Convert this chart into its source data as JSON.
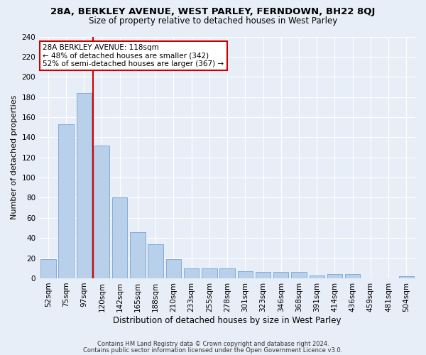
{
  "title1": "28A, BERKLEY AVENUE, WEST PARLEY, FERNDOWN, BH22 8QJ",
  "title2": "Size of property relative to detached houses in West Parley",
  "xlabel": "Distribution of detached houses by size in West Parley",
  "ylabel": "Number of detached properties",
  "footer1": "Contains HM Land Registry data © Crown copyright and database right 2024.",
  "footer2": "Contains public sector information licensed under the Open Government Licence v3.0.",
  "categories": [
    "52sqm",
    "75sqm",
    "97sqm",
    "120sqm",
    "142sqm",
    "165sqm",
    "188sqm",
    "210sqm",
    "233sqm",
    "255sqm",
    "278sqm",
    "301sqm",
    "323sqm",
    "346sqm",
    "368sqm",
    "391sqm",
    "414sqm",
    "436sqm",
    "459sqm",
    "481sqm",
    "504sqm"
  ],
  "values": [
    19,
    153,
    184,
    132,
    80,
    46,
    34,
    19,
    10,
    10,
    10,
    7,
    6,
    6,
    6,
    3,
    4,
    4,
    0,
    0,
    2
  ],
  "bar_color": "#b8d0ea",
  "bar_edge_color": "#6699cc",
  "vline_x_index": 2,
  "vline_color": "#cc0000",
  "annotation_line1": "28A BERKLEY AVENUE: 118sqm",
  "annotation_line2": "← 48% of detached houses are smaller (342)",
  "annotation_line3": "52% of semi-detached houses are larger (367) →",
  "annotation_box_color": "#ffffff",
  "annotation_box_edge": "#cc0000",
  "ylim": [
    0,
    240
  ],
  "yticks": [
    0,
    20,
    40,
    60,
    80,
    100,
    120,
    140,
    160,
    180,
    200,
    220,
    240
  ],
  "background_color": "#e8eef8",
  "grid_color": "#ffffff",
  "title1_fontsize": 9.5,
  "title2_fontsize": 8.5,
  "ylabel_fontsize": 8,
  "xlabel_fontsize": 8.5,
  "tick_fontsize": 7.5,
  "annot_fontsize": 7.5,
  "footer_fontsize": 6
}
